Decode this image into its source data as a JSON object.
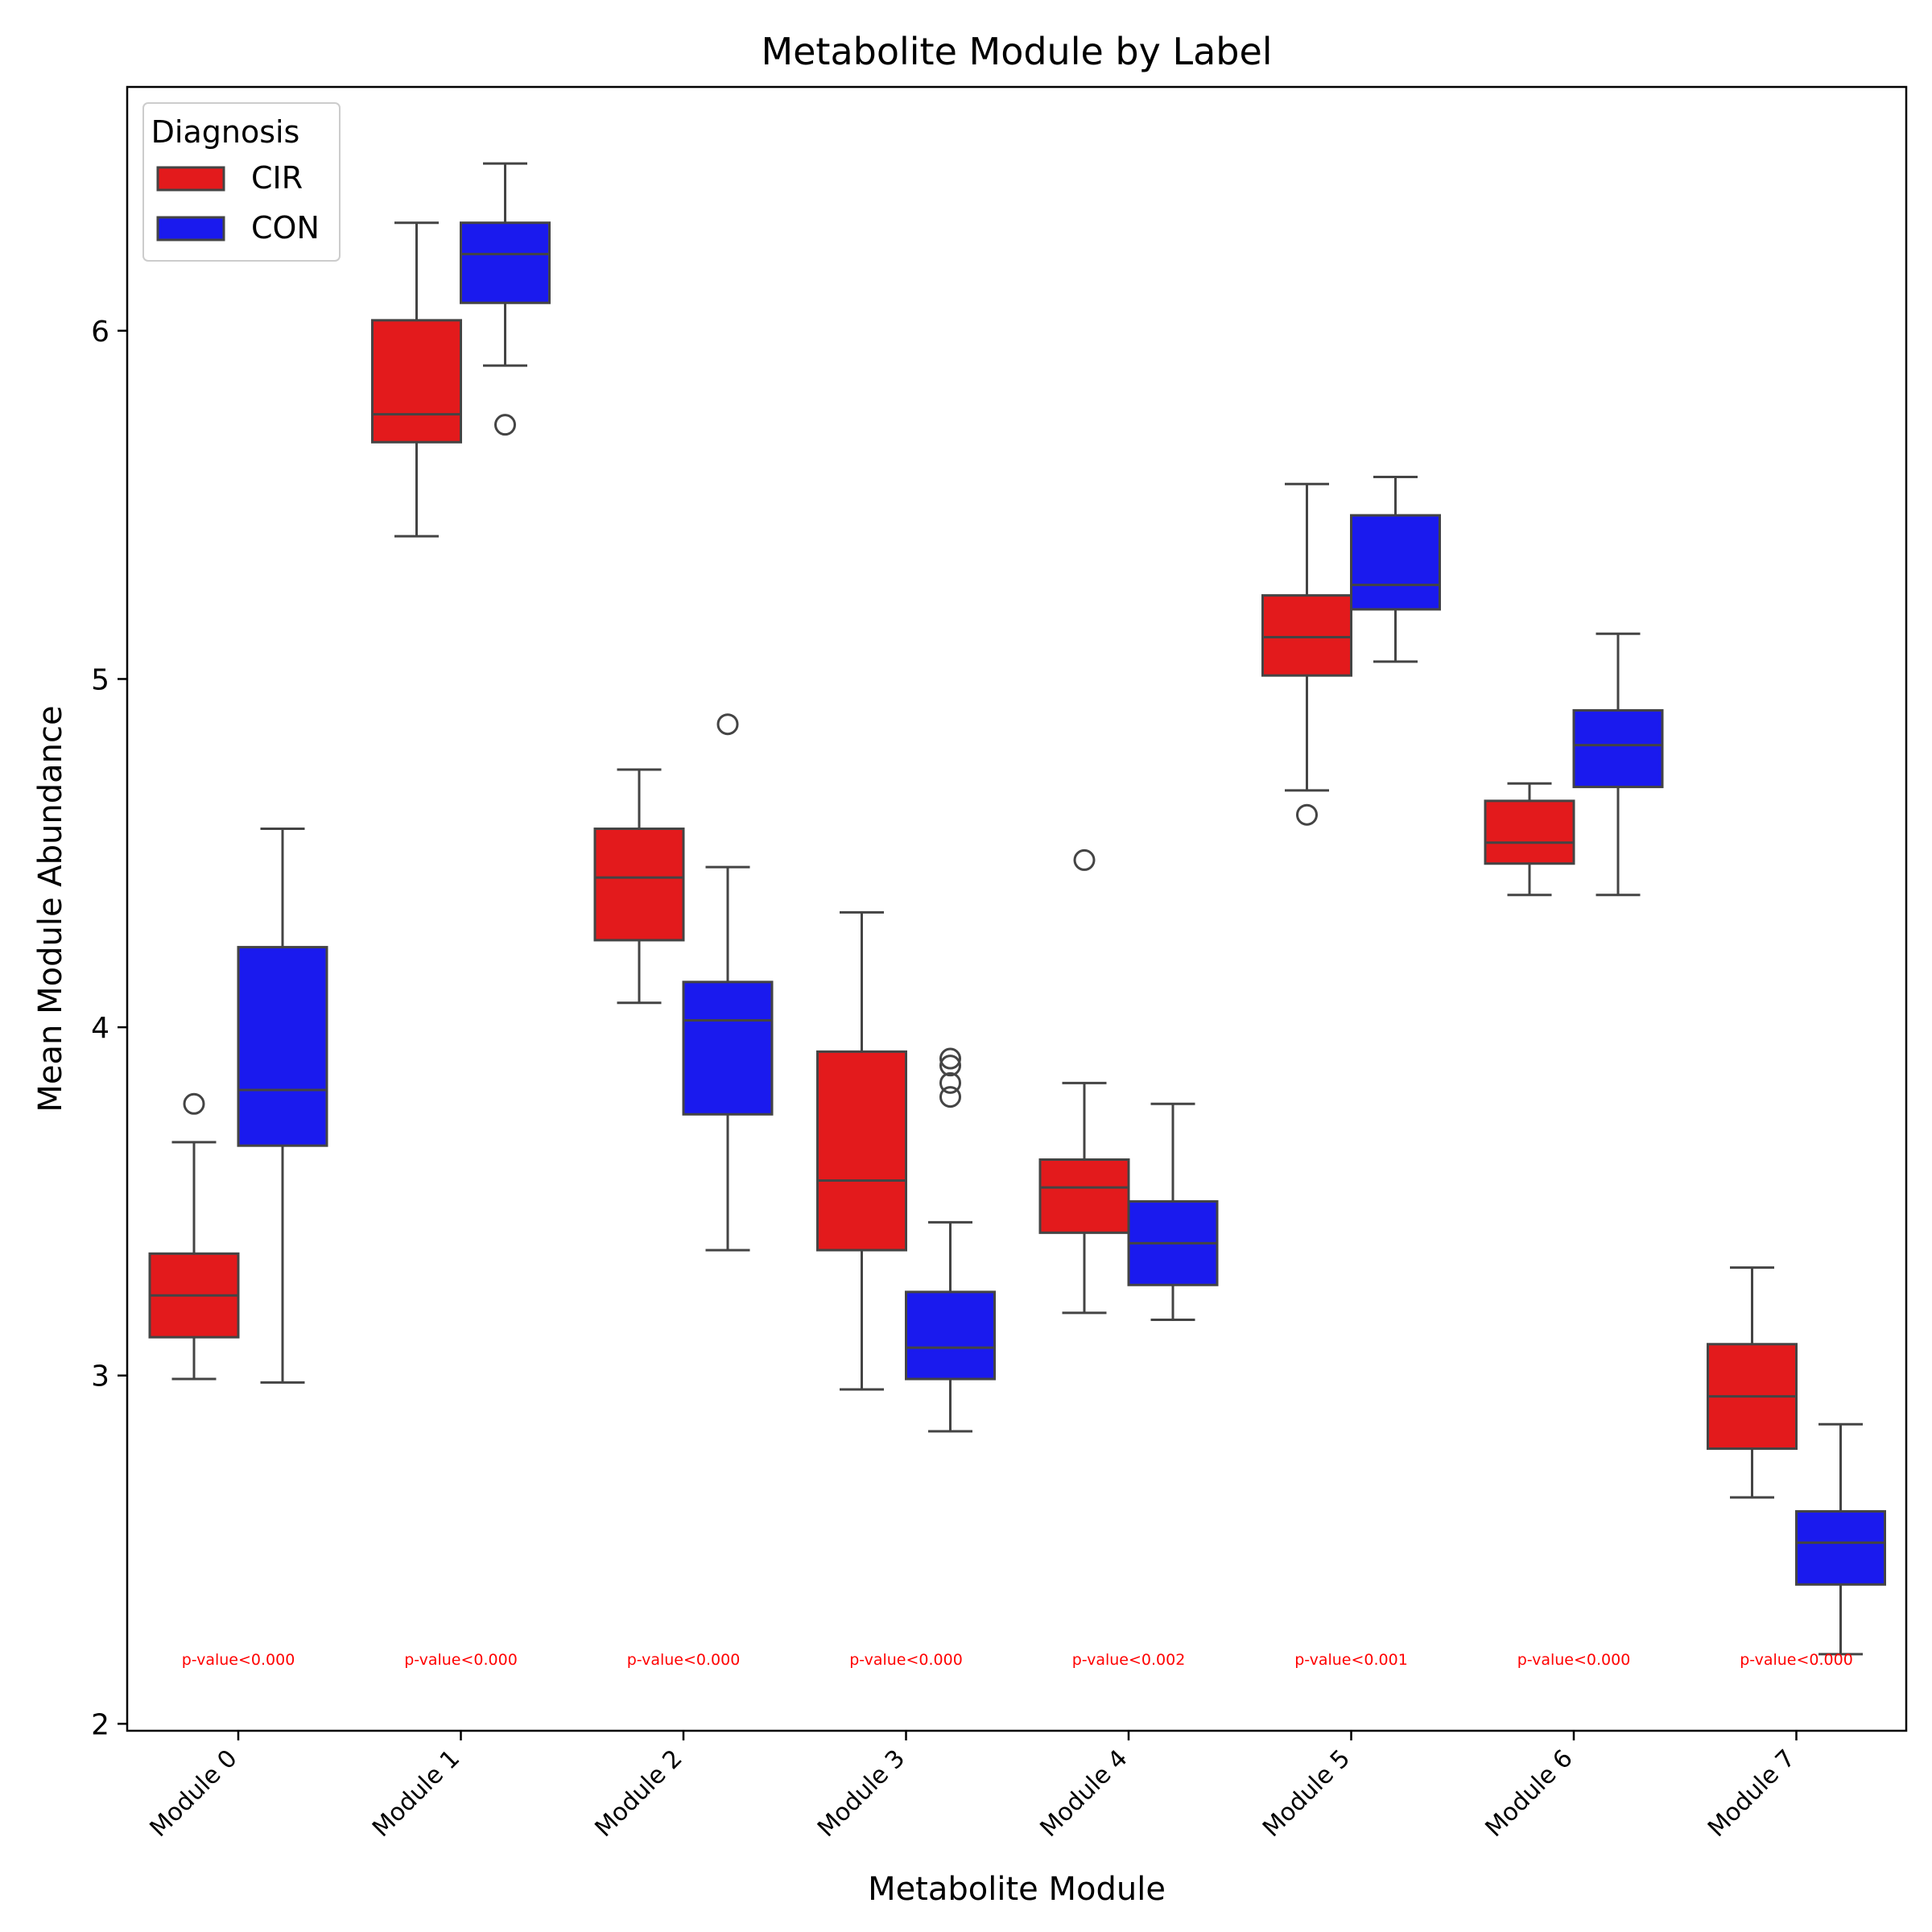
{
  "chart_data": {
    "type": "box",
    "title": "Metabolite Module by Label",
    "xlabel": "Metabolite Module",
    "ylabel": "Mean Module Abundance",
    "ylim": [
      1.98,
      6.7
    ],
    "yticks": [
      2,
      3,
      4,
      5,
      6
    ],
    "categories": [
      "Module 0",
      "Module 1",
      "Module 2",
      "Module 3",
      "Module 4",
      "Module 5",
      "Module 6",
      "Module 7"
    ],
    "legend": {
      "title": "Diagnosis",
      "placement": "top-left"
    },
    "grid": false,
    "series": [
      {
        "name": "CIR",
        "color": "#e31a1c",
        "boxes": [
          {
            "whislo": 2.99,
            "q1": 3.11,
            "med": 3.23,
            "q3": 3.35,
            "whishi": 3.67,
            "fliers": [
              3.78
            ]
          },
          {
            "whislo": 5.41,
            "q1": 5.68,
            "med": 5.76,
            "q3": 6.03,
            "whishi": 6.31,
            "fliers": []
          },
          {
            "whislo": 4.07,
            "q1": 4.25,
            "med": 4.43,
            "q3": 4.57,
            "whishi": 4.74,
            "fliers": []
          },
          {
            "whislo": 2.96,
            "q1": 3.36,
            "med": 3.56,
            "q3": 3.93,
            "whishi": 4.33,
            "fliers": []
          },
          {
            "whislo": 3.18,
            "q1": 3.41,
            "med": 3.54,
            "q3": 3.62,
            "whishi": 3.84,
            "fliers": [
              4.48
            ]
          },
          {
            "whislo": 4.68,
            "q1": 5.01,
            "med": 5.12,
            "q3": 5.24,
            "whishi": 5.56,
            "fliers": [
              4.61
            ]
          },
          {
            "whislo": 4.38,
            "q1": 4.47,
            "med": 4.53,
            "q3": 4.65,
            "whishi": 4.7,
            "fliers": []
          },
          {
            "whislo": 2.65,
            "q1": 2.79,
            "med": 2.94,
            "q3": 3.09,
            "whishi": 3.31,
            "fliers": []
          }
        ]
      },
      {
        "name": "CON",
        "color": "#1a1aee",
        "boxes": [
          {
            "whislo": 2.98,
            "q1": 3.66,
            "med": 3.82,
            "q3": 4.23,
            "whishi": 4.57,
            "fliers": []
          },
          {
            "whislo": 5.9,
            "q1": 6.08,
            "med": 6.22,
            "q3": 6.31,
            "whishi": 6.48,
            "fliers": [
              5.73
            ]
          },
          {
            "whislo": 3.36,
            "q1": 3.75,
            "med": 4.02,
            "q3": 4.13,
            "whishi": 4.46,
            "fliers": [
              4.87
            ]
          },
          {
            "whislo": 2.84,
            "q1": 2.99,
            "med": 3.08,
            "q3": 3.24,
            "whishi": 3.44,
            "fliers": [
              3.8,
              3.84,
              3.89,
              3.91
            ]
          },
          {
            "whislo": 3.16,
            "q1": 3.26,
            "med": 3.38,
            "q3": 3.5,
            "whishi": 3.78,
            "fliers": []
          },
          {
            "whislo": 5.05,
            "q1": 5.2,
            "med": 5.27,
            "q3": 5.47,
            "whishi": 5.58,
            "fliers": []
          },
          {
            "whislo": 4.38,
            "q1": 4.69,
            "med": 4.81,
            "q3": 4.91,
            "whishi": 5.13,
            "fliers": []
          },
          {
            "whislo": 2.2,
            "q1": 2.4,
            "med": 2.52,
            "q3": 2.61,
            "whishi": 2.86,
            "fliers": []
          }
        ]
      }
    ],
    "annotations": {
      "y": 2.17,
      "color": "#ff0000",
      "labels": [
        "p-value<0.000",
        "p-value<0.000",
        "p-value<0.000",
        "p-value<0.000",
        "p-value<0.002",
        "p-value<0.001",
        "p-value<0.000",
        "p-value<0.000"
      ]
    }
  }
}
